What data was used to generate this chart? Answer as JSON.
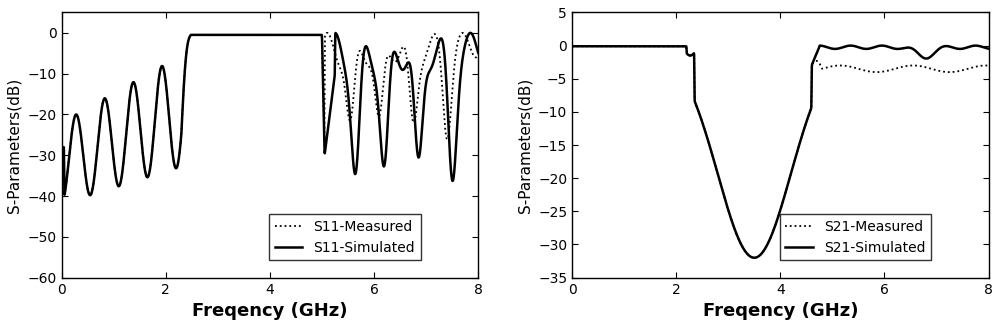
{
  "fig_width": 10.0,
  "fig_height": 3.27,
  "dpi": 100,
  "background_color": "#ffffff",
  "left_plot": {
    "xlabel": "Freqency (GHz)",
    "ylabel": "S-Parameters(dB)",
    "xlim": [
      0,
      8
    ],
    "ylim": [
      -60,
      5
    ],
    "yticks": [
      0,
      -10,
      -20,
      -30,
      -40,
      -50,
      -60
    ],
    "xticks": [
      0,
      2,
      4,
      6,
      8
    ],
    "legend": [
      "S11-Measured",
      "S11-Simulated"
    ]
  },
  "right_plot": {
    "xlabel": "Freqency (GHz)",
    "ylabel": "S-Parameters(dB)",
    "xlim": [
      0,
      8
    ],
    "ylim": [
      -35,
      5
    ],
    "yticks": [
      5,
      0,
      -5,
      -10,
      -15,
      -20,
      -25,
      -30,
      -35
    ],
    "xticks": [
      0,
      2,
      4,
      6,
      8
    ],
    "legend": [
      "S21-Measured",
      "S21-Simulated"
    ]
  },
  "line_color": "#000000",
  "lw_simulated": 1.8,
  "lw_measured": 1.3,
  "xlabel_fontsize": 13,
  "ylabel_fontsize": 11,
  "tick_fontsize": 10,
  "legend_fontsize": 10
}
